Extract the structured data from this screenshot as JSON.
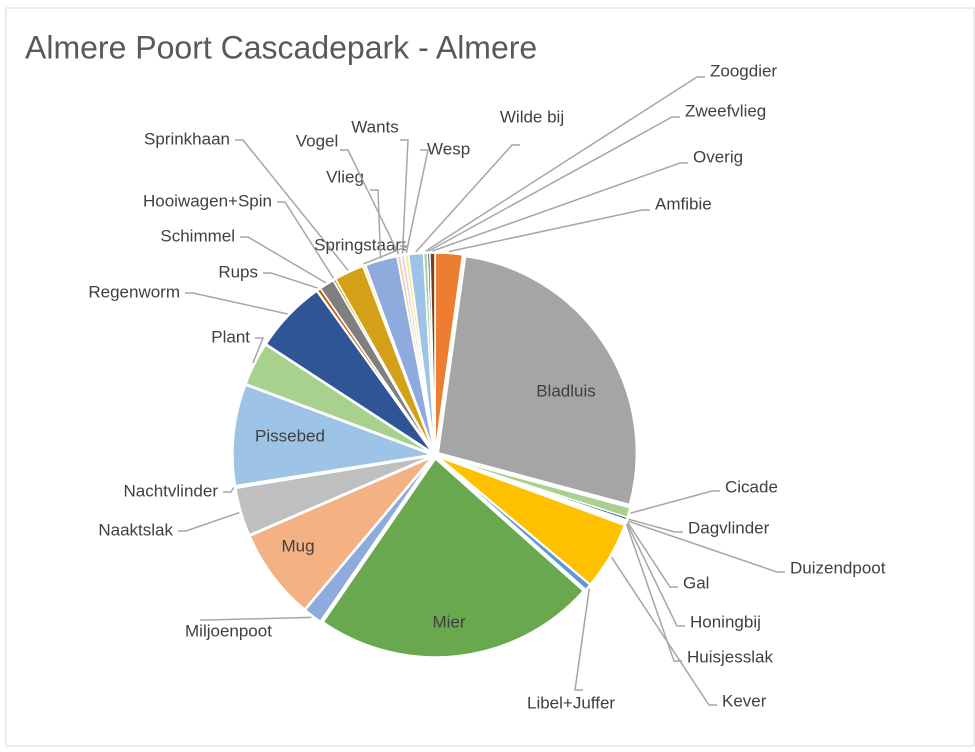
{
  "chart_data": {
    "type": "pie",
    "title": "Almere Poort Cascadepark - Almere",
    "categories": [
      "Amfibie",
      "Bladluis",
      "Cicade",
      "Dagvlinder",
      "Duizendpoot",
      "Gal",
      "Honingbij",
      "Huisjesslak",
      "Kever",
      "Libel+Juffer",
      "Mier",
      "Miljoenpoot",
      "Mug",
      "Naaktslak",
      "Nachtvlinder",
      "Pissebed",
      "Plant",
      "Regenworm",
      "Rups",
      "Schimmel",
      "Hooiwagen+Spin",
      "Sprinkhaan",
      "Springstaart",
      "Vlieg",
      "Vogel",
      "Wants",
      "Wesp",
      "Wilde bij",
      "Zoogdier",
      "Zweefvlieg",
      "Overig"
    ],
    "values": [
      2.2,
      27,
      0.8,
      0.2,
      0.1,
      0.1,
      0.1,
      0.1,
      5.5,
      0.5,
      23,
      1.5,
      7.4,
      3.9,
      0.1,
      8.2,
      3.5,
      5.9,
      0.3,
      1.2,
      0.2,
      2.4,
      0.2,
      2.6,
      0.3,
      0.3,
      0.3,
      1.2,
      0.3,
      0.2,
      0.4
    ],
    "colors": [
      "#ed7d31",
      "#a5a5a5",
      "#a9d18e",
      "#264478",
      "#9e480e",
      "#636363",
      "#997300",
      "#255e91",
      "#ffc000",
      "#5b9bd5",
      "#6aa84f",
      "#8faadc",
      "#f4b183",
      "#bfbfbf",
      "#ffd966",
      "#9dc3e6",
      "#a9d18e",
      "#2f5597",
      "#c55a11",
      "#7f7f7f",
      "#bf9000",
      "#d4a017",
      "#ffe699",
      "#8faadc",
      "#f8cbad",
      "#dbdbdb",
      "#ffe699",
      "#9dc3e6",
      "#a9d18e",
      "#2f5597",
      "#843c0c"
    ]
  }
}
